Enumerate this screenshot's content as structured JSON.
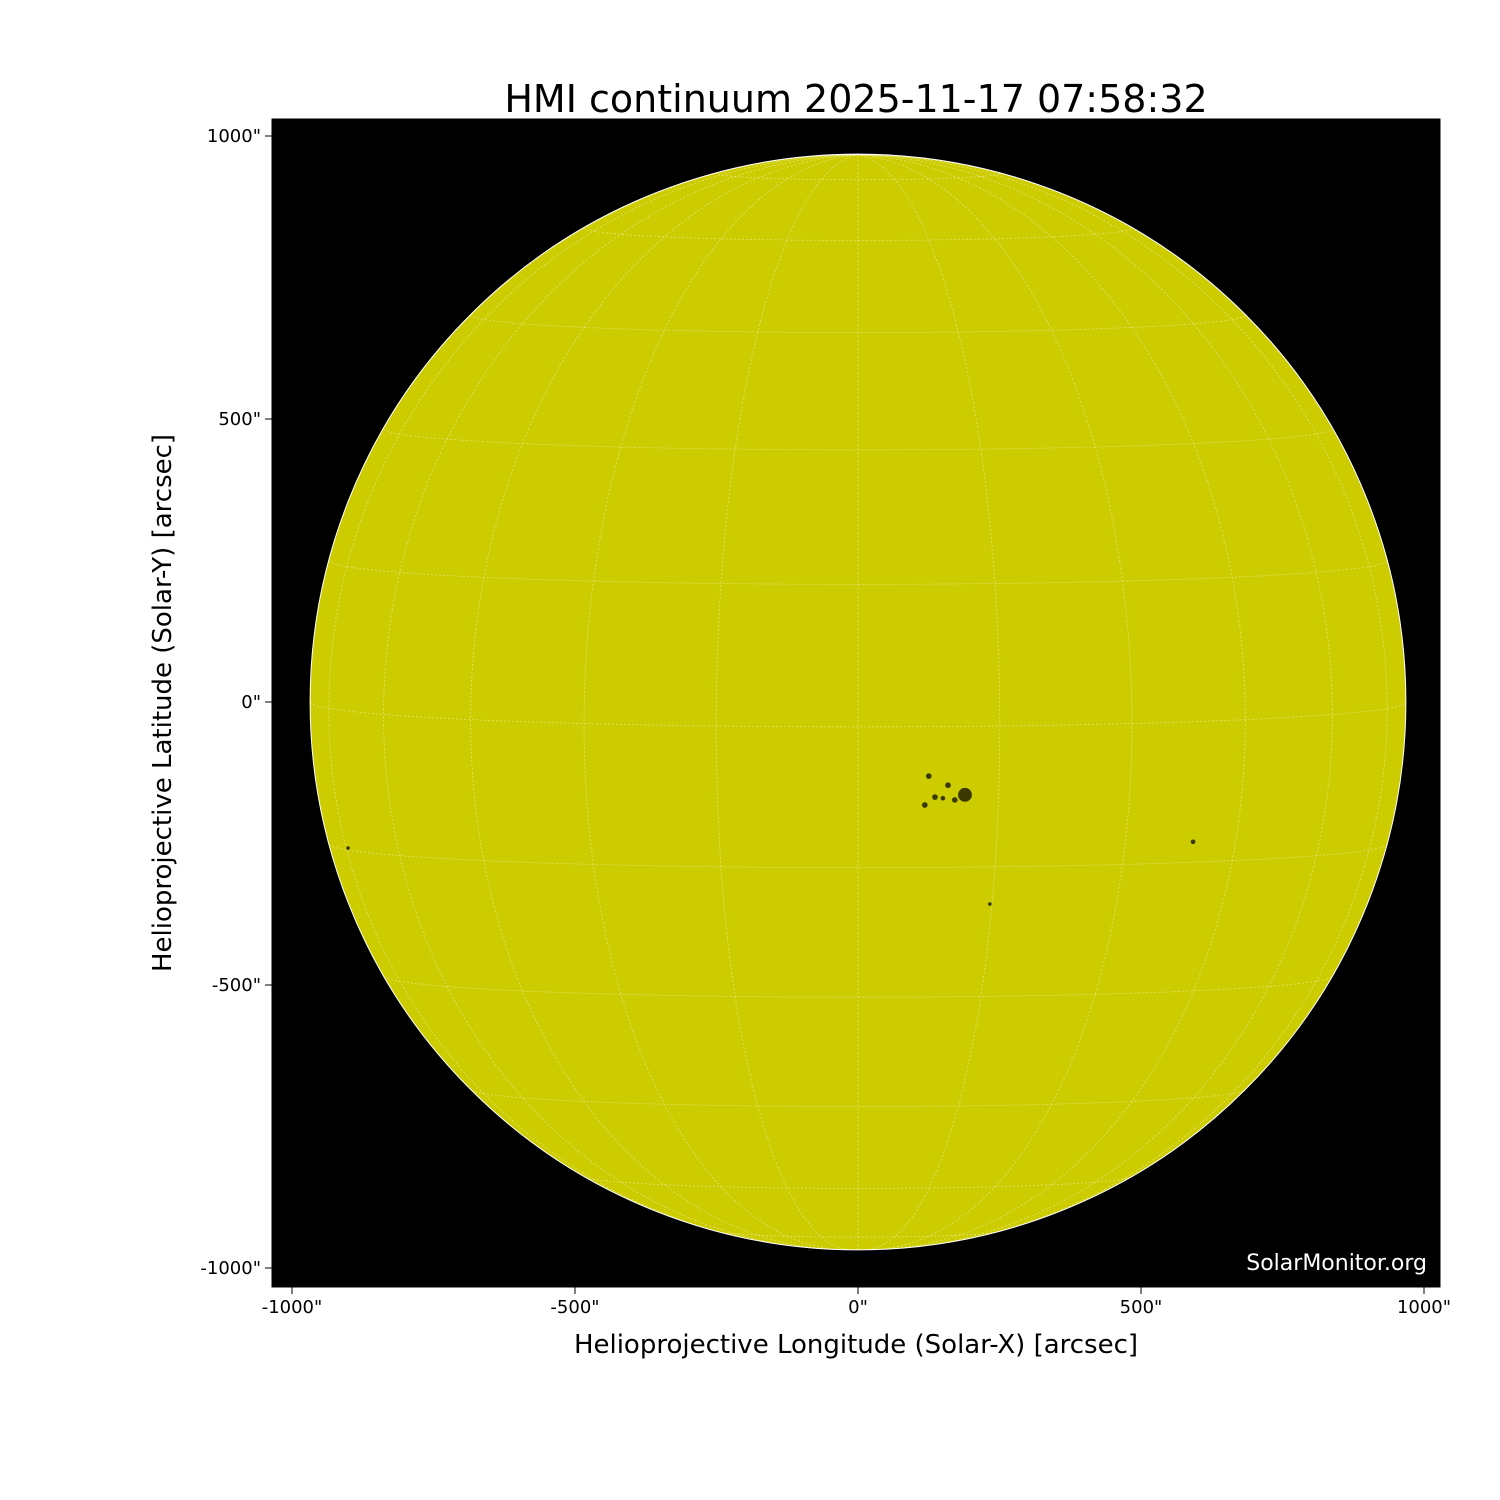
{
  "chart_data": {
    "type": "image",
    "title": "HMI continuum 2025-11-17 07:58:32",
    "xlabel": "Helioprojective Longitude (Solar-X) [arcsec]",
    "ylabel": "Helioprojective Latitude (Solar-Y) [arcsec]",
    "xlim": [
      -1030,
      1030
    ],
    "ylim": [
      -1030,
      1030
    ],
    "xticks": [
      -1000,
      -500,
      0,
      500,
      1000
    ],
    "yticks": [
      -1000,
      -500,
      0,
      500,
      1000
    ],
    "xtick_labels": [
      "-1000\"",
      "-500\"",
      "0\"",
      "500\"",
      "1000\""
    ],
    "ytick_labels": [
      "-1000\"",
      "-500\"",
      "0\"",
      "500\"",
      "1000\""
    ],
    "solar_radius_arcsec": 968,
    "grid_spacing_deg": 15,
    "grid": true,
    "colors": {
      "disk": "#cccc00",
      "background": "#000000",
      "grid": "#ffffff",
      "spot": "#3a3a00"
    },
    "sunspots": [
      {
        "x": 189,
        "y": -164,
        "size": 12
      },
      {
        "x": 159,
        "y": -147,
        "size": 4
      },
      {
        "x": 171,
        "y": -173,
        "size": 4
      },
      {
        "x": 125,
        "y": -131,
        "size": 4
      },
      {
        "x": 118,
        "y": -182,
        "size": 4
      },
      {
        "x": 136,
        "y": -168,
        "size": 4
      },
      {
        "x": 150,
        "y": -170,
        "size": 3
      },
      {
        "x": 592,
        "y": -247,
        "size": 3
      },
      {
        "x": 233,
        "y": -357,
        "size": 2
      },
      {
        "x": -901,
        "y": -258,
        "size": 2
      }
    ],
    "watermark": "SolarMonitor.org"
  }
}
